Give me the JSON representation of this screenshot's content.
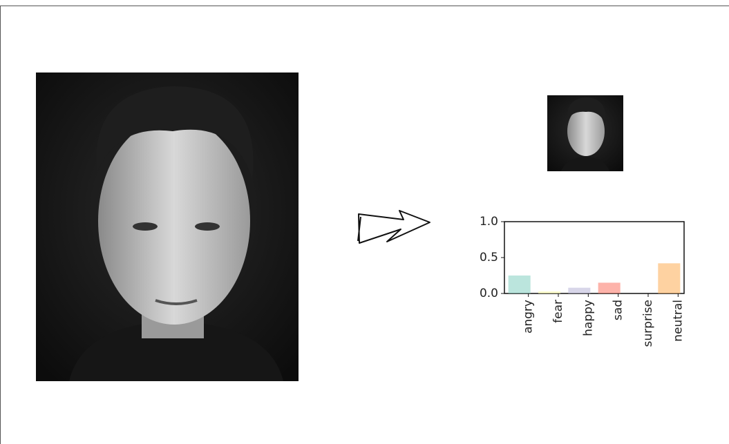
{
  "chart_data": {
    "type": "bar",
    "categories": [
      "angry",
      "fear",
      "happy",
      "sad",
      "surprise",
      "neutral"
    ],
    "values": [
      0.25,
      0.03,
      0.08,
      0.15,
      0,
      0.42
    ],
    "colors": [
      "#8dd3c7",
      "#ffffb3",
      "#bebada",
      "#fb8072",
      "#80b1d3",
      "#fdb462"
    ],
    "ylim": [
      0,
      1
    ],
    "yticks": [
      {
        "value": 0,
        "label": "0.0"
      },
      {
        "value": 0.5,
        "label": "0.5"
      },
      {
        "value": 1,
        "label": "1.0"
      }
    ],
    "grid": false
  }
}
